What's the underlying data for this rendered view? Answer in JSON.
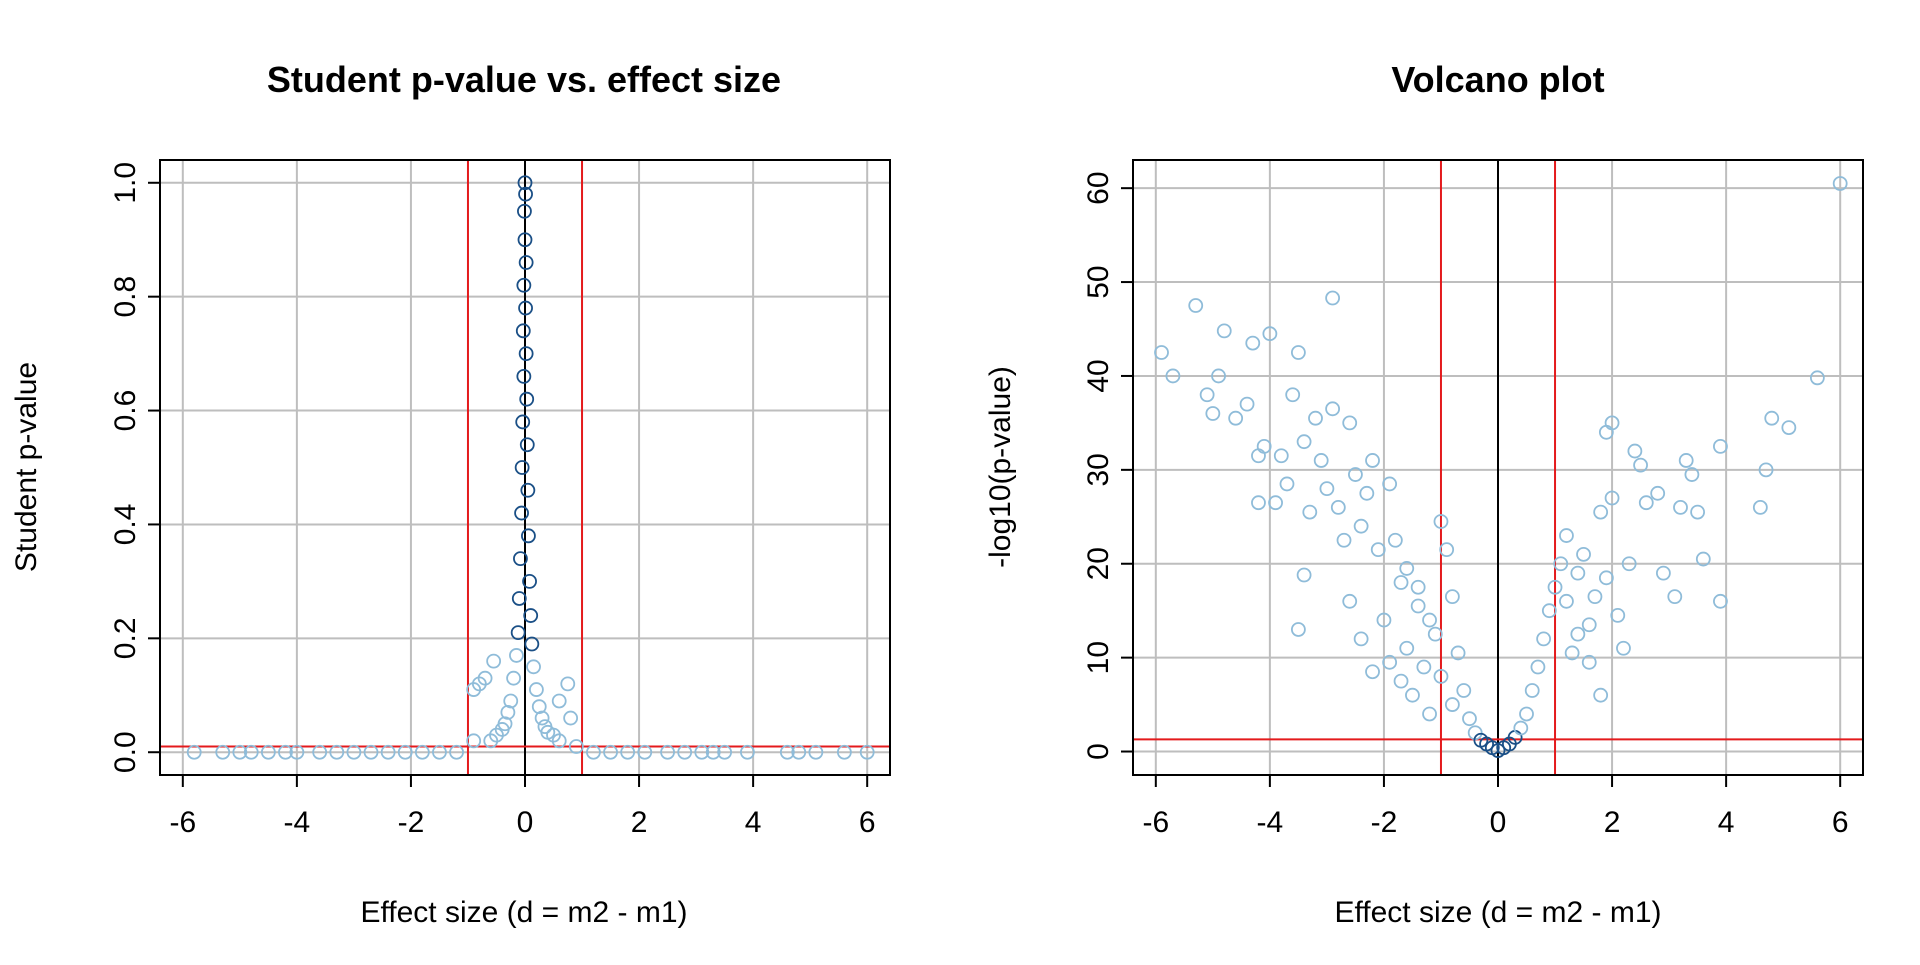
{
  "colors": {
    "points_light": "#8fbcd9",
    "points_dark": "#1a4f86",
    "threshold_lines": "#e41a1c",
    "zero_line": "#000000",
    "grid": "#bebebe"
  },
  "chart_data": [
    {
      "type": "scatter",
      "title": "Student p-value vs. effect size",
      "xlabel": "Effect size (d = m2 - m1)",
      "ylabel": "Student p-value",
      "xlim": [
        -6.4,
        6.4
      ],
      "ylim": [
        -0.04,
        1.04
      ],
      "xticks": [
        "-6",
        "-4",
        "-2",
        "0",
        "2",
        "4",
        "6"
      ],
      "xtick_values": [
        -6,
        -4,
        -2,
        0,
        2,
        4,
        6
      ],
      "yticks": [
        "0.0",
        "0.2",
        "0.4",
        "0.6",
        "0.8",
        "1.0"
      ],
      "ytick_values": [
        0,
        0.2,
        0.4,
        0.6,
        0.8,
        1.0
      ],
      "grid": true,
      "vlines_red": [
        -1,
        1
      ],
      "vline_black": 0,
      "hline_red": 0.01,
      "marker": "open-circle",
      "density_shading": "dark blue where points overlap",
      "series": [
        {
          "values": [
            [
              0.0,
              1.0
            ],
            [
              0.01,
              0.98
            ],
            [
              -0.01,
              0.95
            ],
            [
              0.0,
              0.9
            ],
            [
              0.02,
              0.86
            ],
            [
              -0.02,
              0.82
            ],
            [
              0.01,
              0.78
            ],
            [
              -0.03,
              0.74
            ],
            [
              0.02,
              0.7
            ],
            [
              -0.02,
              0.66
            ],
            [
              0.03,
              0.62
            ],
            [
              -0.04,
              0.58
            ],
            [
              0.04,
              0.54
            ],
            [
              -0.05,
              0.5
            ],
            [
              0.05,
              0.46
            ],
            [
              -0.06,
              0.42
            ],
            [
              0.06,
              0.38
            ],
            [
              -0.08,
              0.34
            ],
            [
              0.08,
              0.3
            ],
            [
              -0.1,
              0.27
            ],
            [
              0.1,
              0.24
            ],
            [
              -0.12,
              0.21
            ],
            [
              0.12,
              0.19
            ],
            [
              -0.15,
              0.17
            ],
            [
              0.15,
              0.15
            ],
            [
              -0.2,
              0.13
            ],
            [
              0.2,
              0.11
            ],
            [
              -0.25,
              0.09
            ],
            [
              0.25,
              0.08
            ],
            [
              -0.3,
              0.07
            ],
            [
              0.3,
              0.06
            ],
            [
              -0.35,
              0.05
            ],
            [
              0.35,
              0.045
            ],
            [
              -0.4,
              0.04
            ],
            [
              0.4,
              0.035
            ],
            [
              -0.8,
              0.12
            ],
            [
              -0.7,
              0.13
            ],
            [
              -0.9,
              0.11
            ],
            [
              0.75,
              0.12
            ],
            [
              0.8,
              0.06
            ],
            [
              -0.55,
              0.16
            ],
            [
              0.6,
              0.09
            ],
            [
              -0.5,
              0.03
            ],
            [
              0.5,
              0.03
            ],
            [
              -0.6,
              0.02
            ],
            [
              0.6,
              0.02
            ],
            [
              -0.9,
              0.02
            ],
            [
              0.9,
              0.01
            ],
            [
              -5.8,
              0.0
            ],
            [
              -5.3,
              0.0
            ],
            [
              -5.0,
              0.0
            ],
            [
              -4.8,
              0.0
            ],
            [
              -4.5,
              0.0
            ],
            [
              -4.2,
              0.0
            ],
            [
              -4.0,
              0.0
            ],
            [
              -3.6,
              0.0
            ],
            [
              -3.3,
              0.0
            ],
            [
              -3.0,
              0.0
            ],
            [
              -2.7,
              0.0
            ],
            [
              -2.4,
              0.0
            ],
            [
              -2.1,
              0.0
            ],
            [
              -1.8,
              0.0
            ],
            [
              -1.5,
              0.0
            ],
            [
              -1.2,
              0.0
            ],
            [
              1.2,
              0.0
            ],
            [
              1.5,
              0.0
            ],
            [
              1.8,
              0.0
            ],
            [
              2.1,
              0.0
            ],
            [
              2.5,
              0.0
            ],
            [
              2.8,
              0.0
            ],
            [
              3.1,
              0.0
            ],
            [
              3.3,
              0.0
            ],
            [
              3.5,
              0.0
            ],
            [
              3.9,
              0.0
            ],
            [
              4.6,
              0.0
            ],
            [
              4.8,
              0.0
            ],
            [
              5.1,
              0.0
            ],
            [
              5.6,
              0.0
            ],
            [
              6.0,
              0.0
            ]
          ]
        }
      ]
    },
    {
      "type": "scatter",
      "title": "Volcano plot",
      "xlabel": "Effect size (d = m2 - m1)",
      "ylabel": "-log10(p-value)",
      "xlim": [
        -6.4,
        6.4
      ],
      "ylim": [
        -2.5,
        63
      ],
      "xticks": [
        "-6",
        "-4",
        "-2",
        "0",
        "2",
        "4",
        "6"
      ],
      "xtick_values": [
        -6,
        -4,
        -2,
        0,
        2,
        4,
        6
      ],
      "yticks": [
        "0",
        "10",
        "20",
        "30",
        "40",
        "50",
        "60"
      ],
      "ytick_values": [
        0,
        10,
        20,
        30,
        40,
        50,
        60
      ],
      "grid": true,
      "vlines_red": [
        -1,
        1
      ],
      "vline_black": 0,
      "hline_red": 1.3,
      "marker": "open-circle",
      "density_shading": "dark blue near origin",
      "series": [
        {
          "values": [
            [
              -5.9,
              42.5
            ],
            [
              -5.7,
              40.0
            ],
            [
              -5.3,
              47.5
            ],
            [
              -5.1,
              38.0
            ],
            [
              -5.0,
              36.0
            ],
            [
              -4.9,
              40.0
            ],
            [
              -4.8,
              44.8
            ],
            [
              -4.6,
              35.5
            ],
            [
              -4.4,
              37.0
            ],
            [
              -4.3,
              43.5
            ],
            [
              -4.2,
              31.5
            ],
            [
              -4.2,
              26.5
            ],
            [
              -4.1,
              32.5
            ],
            [
              -4.0,
              44.5
            ],
            [
              -3.9,
              26.5
            ],
            [
              -3.8,
              31.5
            ],
            [
              -3.7,
              28.5
            ],
            [
              -3.6,
              38.0
            ],
            [
              -3.5,
              42.5
            ],
            [
              -3.4,
              33.0
            ],
            [
              -3.4,
              18.8
            ],
            [
              -3.3,
              25.5
            ],
            [
              -3.2,
              35.5
            ],
            [
              -3.1,
              31.0
            ],
            [
              -3.0,
              28.0
            ],
            [
              -2.9,
              48.3
            ],
            [
              -2.9,
              36.5
            ],
            [
              -2.8,
              26.0
            ],
            [
              -2.7,
              22.5
            ],
            [
              -2.6,
              35.0
            ],
            [
              -2.5,
              29.5
            ],
            [
              -2.4,
              24.0
            ],
            [
              -2.3,
              27.5
            ],
            [
              -2.2,
              31.0
            ],
            [
              -2.1,
              21.5
            ],
            [
              -3.5,
              13.0
            ],
            [
              -2.6,
              16.0
            ],
            [
              -2.4,
              12.0
            ],
            [
              -2.2,
              8.5
            ],
            [
              -2.0,
              14.0
            ],
            [
              -1.9,
              28.5
            ],
            [
              -1.8,
              22.5
            ],
            [
              -1.7,
              18.0
            ],
            [
              -1.6,
              11.0
            ],
            [
              -1.5,
              6.0
            ],
            [
              -1.4,
              15.5
            ],
            [
              -1.3,
              9.0
            ],
            [
              -1.2,
              4.0
            ],
            [
              -1.1,
              12.5
            ],
            [
              -1.0,
              24.5
            ],
            [
              -0.9,
              21.5
            ],
            [
              -0.8,
              16.5
            ],
            [
              -0.7,
              10.5
            ],
            [
              -0.6,
              6.5
            ],
            [
              -0.5,
              3.5
            ],
            [
              -0.4,
              2.0
            ],
            [
              -0.3,
              1.2
            ],
            [
              -0.2,
              0.8
            ],
            [
              -0.1,
              0.4
            ],
            [
              0.0,
              0.1
            ],
            [
              0.1,
              0.4
            ],
            [
              0.2,
              0.8
            ],
            [
              0.3,
              1.5
            ],
            [
              0.4,
              2.5
            ],
            [
              0.5,
              4.0
            ],
            [
              0.6,
              6.5
            ],
            [
              0.7,
              9.0
            ],
            [
              0.8,
              12.0
            ],
            [
              0.9,
              15.0
            ],
            [
              1.0,
              17.5
            ],
            [
              1.1,
              20.0
            ],
            [
              1.2,
              23.0
            ],
            [
              1.3,
              10.5
            ],
            [
              1.4,
              19.0
            ],
            [
              1.5,
              21.0
            ],
            [
              1.6,
              13.5
            ],
            [
              1.7,
              16.5
            ],
            [
              1.8,
              25.5
            ],
            [
              1.9,
              34.0
            ],
            [
              2.0,
              35.0
            ],
            [
              2.0,
              27.0
            ],
            [
              2.1,
              14.5
            ],
            [
              2.2,
              11.0
            ],
            [
              2.3,
              20.0
            ],
            [
              2.4,
              32.0
            ],
            [
              2.5,
              30.5
            ],
            [
              2.6,
              26.5
            ],
            [
              2.8,
              27.5
            ],
            [
              2.9,
              19.0
            ],
            [
              3.1,
              16.5
            ],
            [
              3.2,
              26.0
            ],
            [
              3.3,
              31.0
            ],
            [
              3.4,
              29.5
            ],
            [
              3.5,
              25.5
            ],
            [
              3.6,
              20.5
            ],
            [
              3.9,
              32.5
            ],
            [
              3.9,
              16.0
            ],
            [
              4.6,
              26.0
            ],
            [
              4.7,
              30.0
            ],
            [
              4.8,
              35.5
            ],
            [
              5.1,
              34.5
            ],
            [
              5.6,
              39.8
            ],
            [
              6.0,
              60.5
            ],
            [
              -1.6,
              19.5
            ],
            [
              -1.4,
              17.5
            ],
            [
              -1.2,
              14.0
            ],
            [
              -1.0,
              8.0
            ],
            [
              -0.8,
              5.0
            ],
            [
              1.2,
              16.0
            ],
            [
              1.4,
              12.5
            ],
            [
              1.6,
              9.5
            ],
            [
              1.8,
              6.0
            ],
            [
              1.9,
              18.5
            ],
            [
              -1.9,
              9.5
            ],
            [
              -1.7,
              7.5
            ]
          ]
        }
      ]
    }
  ]
}
